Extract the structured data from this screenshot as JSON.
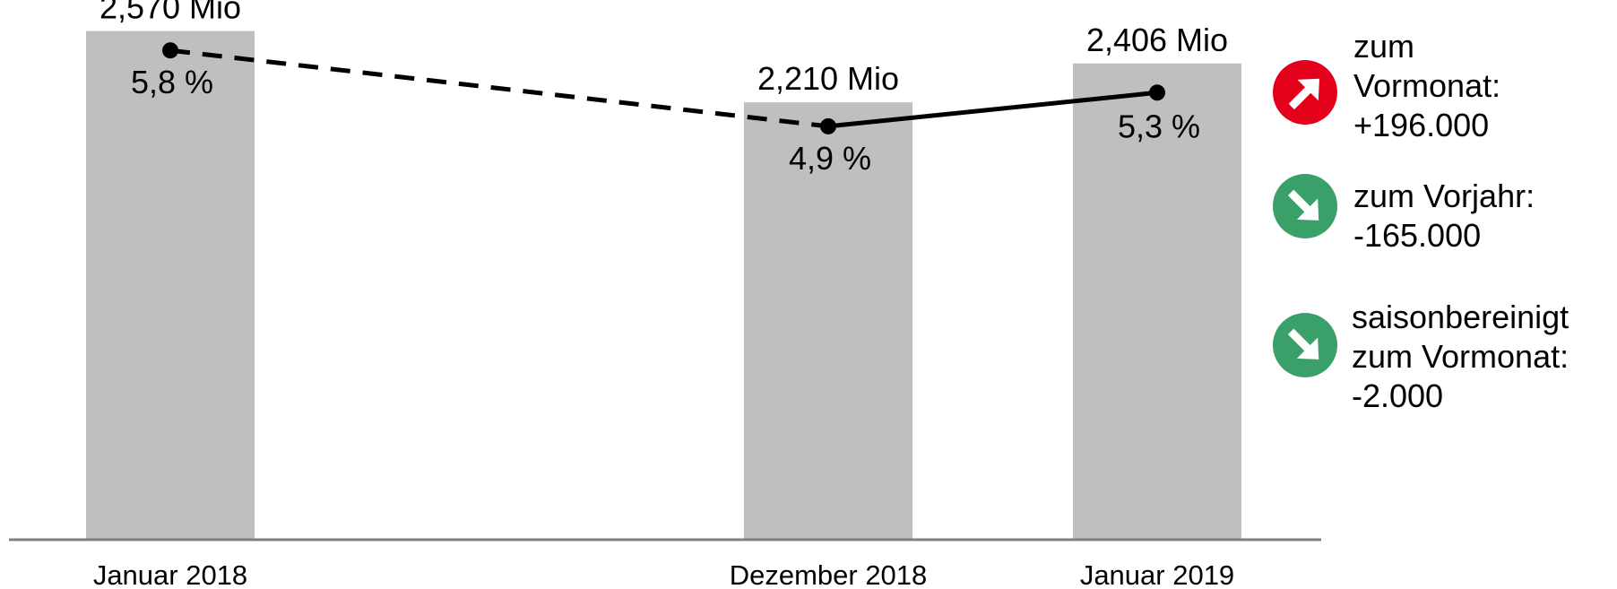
{
  "chart_data": {
    "type": "bar",
    "categories": [
      "Januar 2018",
      "Dezember 2018",
      "Januar 2019"
    ],
    "values": [
      2.57,
      2.21,
      2.406
    ],
    "value_labels": [
      "2,570 Mio",
      "2,210 Mio",
      "2,406 Mio"
    ],
    "bar_color": "#bfbfbf",
    "ylim": [
      0,
      2.6
    ],
    "line": {
      "values": [
        5.8,
        4.9,
        5.3
      ],
      "labels": [
        "5,8 %",
        "4,9 %",
        "5,3 %"
      ],
      "ylim": [
        0,
        6.1
      ],
      "dashed_segments": [
        0
      ],
      "color": "#000000"
    },
    "xlabel": "",
    "ylabel": ""
  },
  "indicators": [
    {
      "direction": "up",
      "color": "#e3001b",
      "lines": [
        "zum",
        "Vormonat:",
        "+196.000"
      ]
    },
    {
      "direction": "down",
      "color": "#3aa06a",
      "lines": [
        "zum Vorjahr:",
        "-165.000"
      ]
    },
    {
      "direction": "down",
      "color": "#3aa06a",
      "lines": [
        "saisonbereinigt",
        "zum Vormonat:",
        "-2.000"
      ]
    }
  ]
}
